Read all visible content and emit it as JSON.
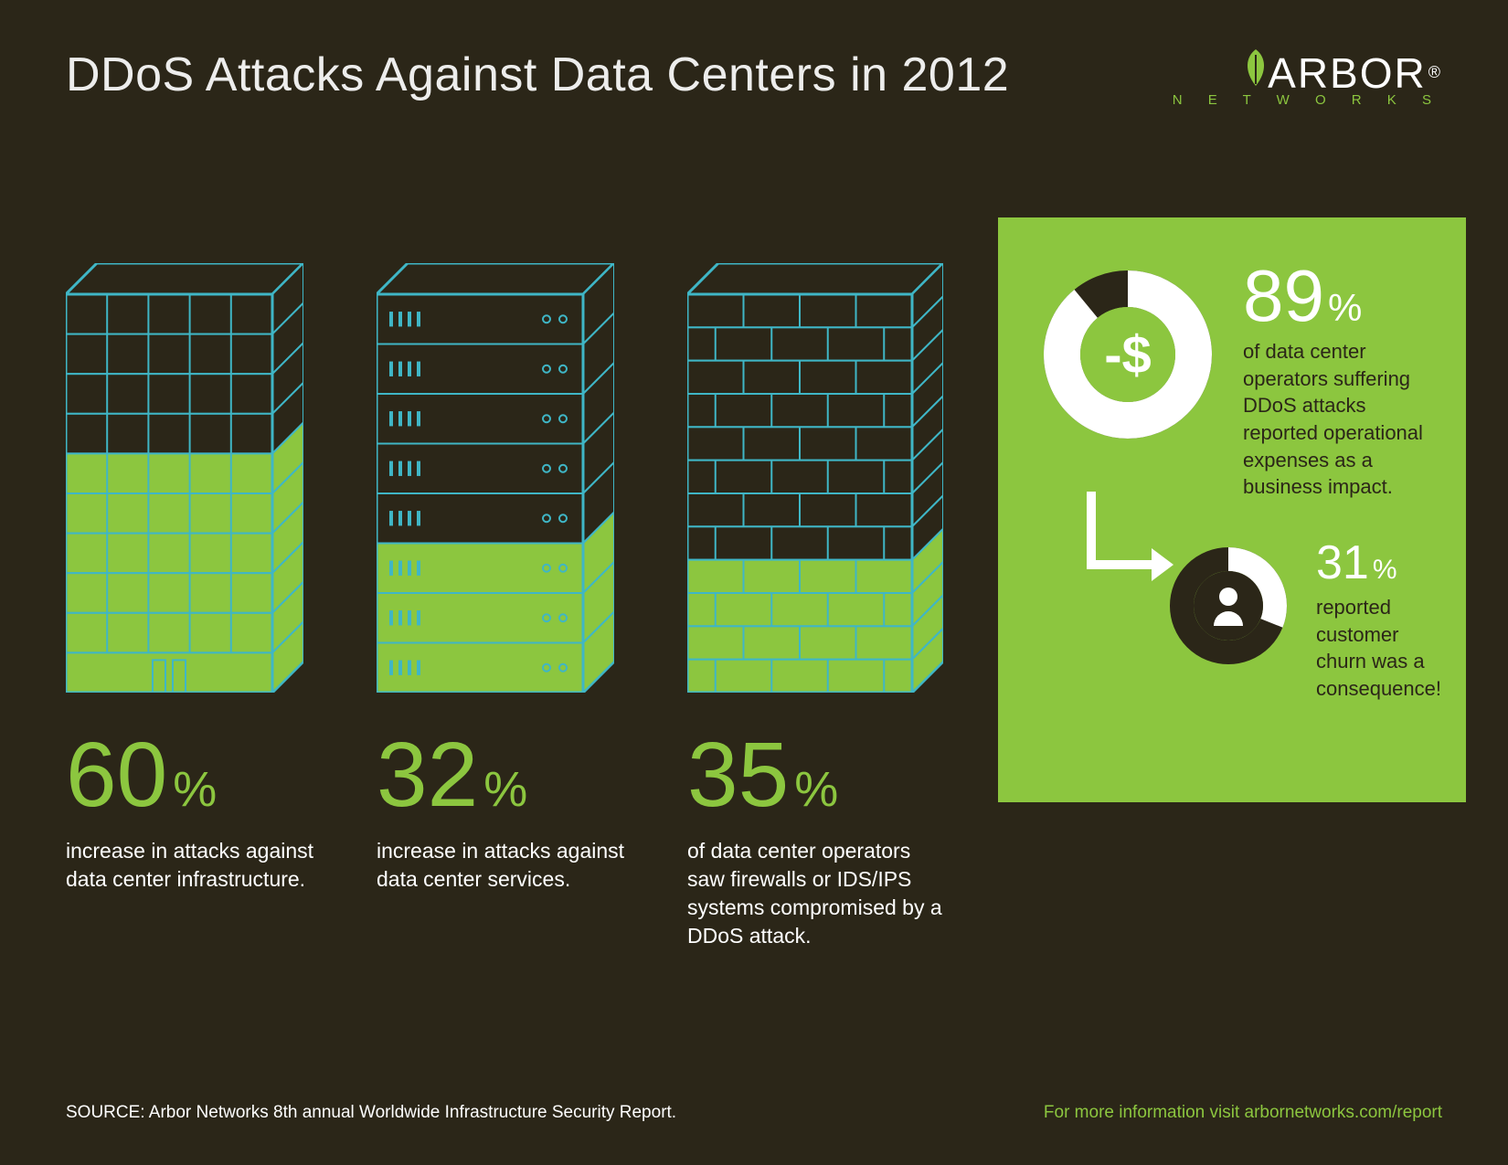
{
  "colors": {
    "background": "#2b2618",
    "title": "#ededec",
    "body_text": "#ffffff",
    "accent": "#8cc63f",
    "stroke": "#3fb6c6",
    "panel_dark": "#2b2618",
    "white": "#ffffff"
  },
  "title": "DDoS Attacks Against Data Centers in 2012",
  "logo": {
    "main": "ARBOR",
    "sub": "N E T W O R K S"
  },
  "stats": [
    {
      "value": "60",
      "suffix": "%",
      "fill_ratio": 0.6,
      "text": "increase in attacks against data center infrastructure."
    },
    {
      "value": "32",
      "suffix": "%",
      "fill_ratio": 0.32,
      "text": "increase in attacks against data center services."
    },
    {
      "value": "35",
      "suffix": "%",
      "fill_ratio": 0.35,
      "text": "of data center operators saw firewalls or IDS/IPS systems compromised by a DDoS attack."
    }
  ],
  "panel": {
    "stat1": {
      "value": "89",
      "suffix": "%",
      "pct": 89,
      "text": "of data center operators suffering DDoS attacks reported operational expenses as a business impact."
    },
    "stat2": {
      "value": "31",
      "suffix": "%",
      "pct": 31,
      "text": "reported customer churn was a consequence!"
    }
  },
  "footer": {
    "source": "SOURCE: Arbor Networks 8th annual Worldwide Infrastructure Security Report.",
    "more_prefix": "For more information visit ",
    "more_link": "arbornetworks.com/report"
  }
}
